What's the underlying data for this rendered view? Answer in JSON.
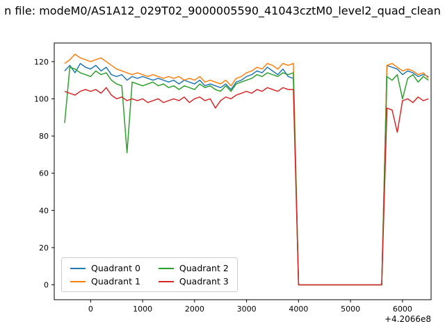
{
  "chart_data": {
    "type": "line",
    "title": "n file: modeM0/AS1A12_029T02_9000005590_41043cztM0_level2_quad_clean",
    "x_offset": "+4.2066e8",
    "xlabel": "",
    "ylabel": "",
    "xlim": [
      -700,
      6550
    ],
    "ylim": [
      -8,
      130
    ],
    "xticks": [
      0,
      1000,
      2000,
      3000,
      4000,
      5000,
      6000
    ],
    "yticks": [
      0,
      20,
      40,
      60,
      80,
      100,
      120
    ],
    "grid": false,
    "legend_position": "lower left",
    "legend_columns": 2,
    "x": [
      -500,
      -400,
      -300,
      -200,
      -100,
      0,
      100,
      200,
      300,
      400,
      500,
      600,
      700,
      800,
      900,
      1000,
      1100,
      1200,
      1300,
      1400,
      1500,
      1600,
      1700,
      1800,
      1900,
      2000,
      2100,
      2200,
      2300,
      2400,
      2500,
      2600,
      2700,
      2800,
      2900,
      3000,
      3100,
      3200,
      3300,
      3400,
      3500,
      3600,
      3700,
      3800,
      3900,
      4000,
      4100,
      4200,
      4300,
      4400,
      4500,
      4600,
      4700,
      4800,
      4900,
      5000,
      5100,
      5200,
      5300,
      5400,
      5500,
      5600,
      5700,
      5800,
      5900,
      6000,
      6100,
      6200,
      6300,
      6400,
      6500
    ],
    "series": [
      {
        "name": "Quadrant 0",
        "color": "#1f77b4",
        "values": [
          115,
          118,
          114,
          119,
          117,
          116,
          118,
          115,
          117,
          113,
          112,
          113,
          110,
          112,
          111,
          112,
          111,
          110,
          111,
          110,
          109,
          110,
          108,
          110,
          109,
          108,
          110,
          107,
          108,
          107,
          106,
          108,
          105,
          109,
          110,
          112,
          113,
          115,
          114,
          117,
          115,
          113,
          116,
          112,
          111,
          0,
          0,
          0,
          0,
          0,
          0,
          0,
          0,
          0,
          0,
          0,
          0,
          0,
          0,
          0,
          0,
          0,
          118,
          117,
          116,
          113,
          115,
          114,
          112,
          113,
          112
        ]
      },
      {
        "name": "Quadrant 1",
        "color": "#ff7f0e",
        "values": [
          119,
          121,
          124,
          122,
          121,
          120,
          121,
          122,
          120,
          118,
          116,
          115,
          114,
          113,
          114,
          113,
          112,
          113,
          112,
          111,
          112,
          111,
          112,
          110,
          111,
          110,
          112,
          109,
          110,
          109,
          108,
          110,
          107,
          111,
          112,
          114,
          115,
          117,
          116,
          119,
          118,
          116,
          119,
          118,
          119,
          0,
          0,
          0,
          0,
          0,
          0,
          0,
          0,
          0,
          0,
          0,
          0,
          0,
          0,
          0,
          0,
          0,
          118,
          119,
          117,
          115,
          116,
          115,
          113,
          114,
          111
        ]
      },
      {
        "name": "Quadrant 2",
        "color": "#2ca02c",
        "values": [
          87,
          117,
          116,
          114,
          113,
          112,
          115,
          113,
          114,
          110,
          108,
          107,
          71,
          109,
          108,
          107,
          108,
          109,
          107,
          108,
          106,
          107,
          105,
          107,
          106,
          105,
          108,
          106,
          107,
          105,
          104,
          107,
          104,
          108,
          109,
          110,
          111,
          113,
          112,
          114,
          113,
          112,
          114,
          113,
          114,
          0,
          0,
          0,
          0,
          0,
          0,
          0,
          0,
          0,
          0,
          0,
          0,
          0,
          0,
          0,
          0,
          0,
          112,
          110,
          113,
          100,
          111,
          113,
          109,
          112,
          110
        ]
      },
      {
        "name": "Quadrant 3",
        "color": "#d62728",
        "values": [
          104,
          103,
          102,
          104,
          105,
          104,
          105,
          103,
          106,
          102,
          100,
          101,
          99,
          100,
          99,
          100,
          98,
          99,
          100,
          98,
          99,
          100,
          99,
          101,
          98,
          100,
          101,
          99,
          100,
          95,
          99,
          101,
          100,
          102,
          103,
          104,
          103,
          105,
          104,
          106,
          105,
          104,
          106,
          105,
          105,
          0,
          0,
          0,
          0,
          0,
          0,
          0,
          0,
          0,
          0,
          0,
          0,
          0,
          0,
          0,
          0,
          0,
          95,
          94,
          82,
          99,
          100,
          98,
          101,
          99,
          100
        ]
      }
    ]
  }
}
